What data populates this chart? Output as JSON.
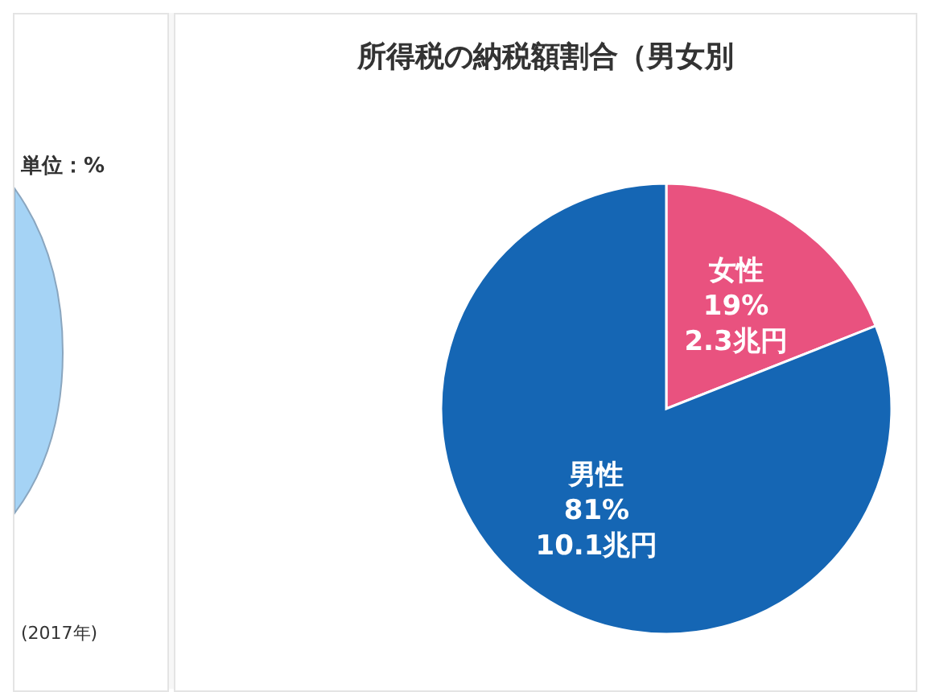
{
  "chart_data": [
    {
      "type": "other",
      "annotations": [
        "単位：%",
        "(2017年)"
      ]
    },
    {
      "type": "pie",
      "title": "所得税の納税額割合（男女別",
      "categories": [
        "女性",
        "男性"
      ],
      "values": [
        19,
        81
      ],
      "colors": [
        "#e9527f",
        "#1566b4"
      ],
      "value_labels": [
        "19%\n2.3兆円",
        "81%\n10.1兆円"
      ]
    }
  ]
}
